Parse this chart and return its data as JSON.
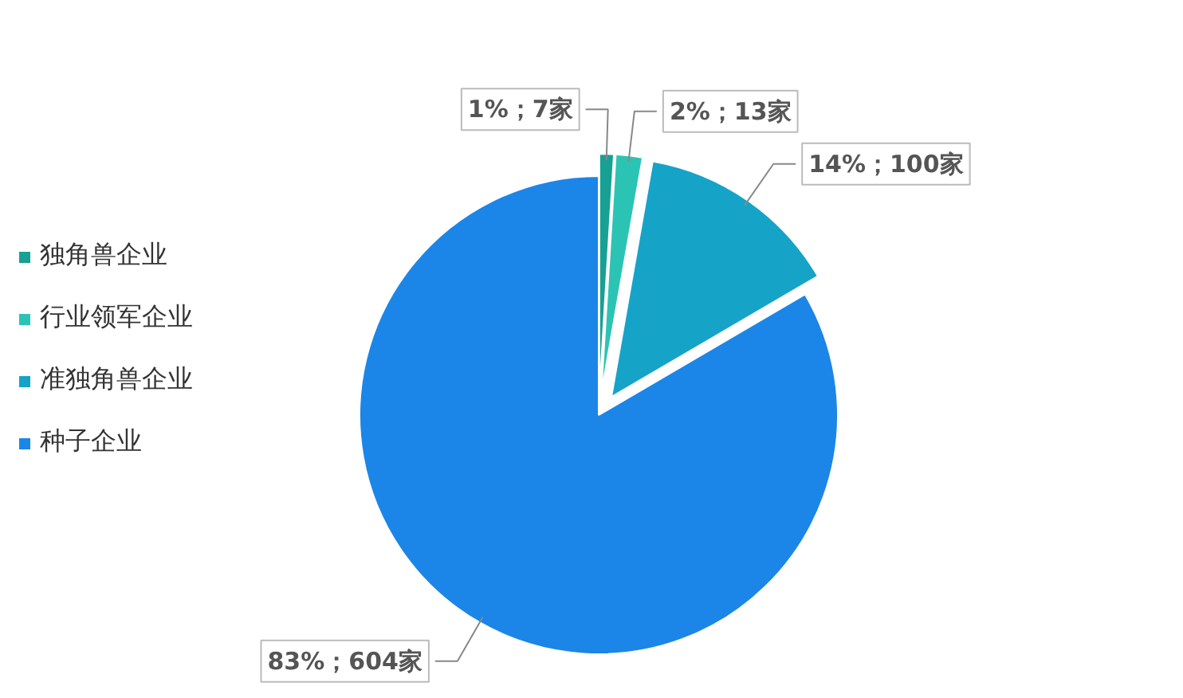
{
  "chart_data": {
    "type": "pie",
    "categories": [
      "独角兽企业",
      "行业领军企业",
      "准独角兽企业",
      "种子企业"
    ],
    "values": [
      7,
      13,
      100,
      604
    ],
    "colors": [
      "#17a093",
      "#2bc4b4",
      "#16a3c8",
      "#1b86e8"
    ],
    "value_labels": [
      "1%；7家",
      "2%；13家",
      "14%；100家",
      "83%；604家"
    ],
    "legend": "left"
  }
}
